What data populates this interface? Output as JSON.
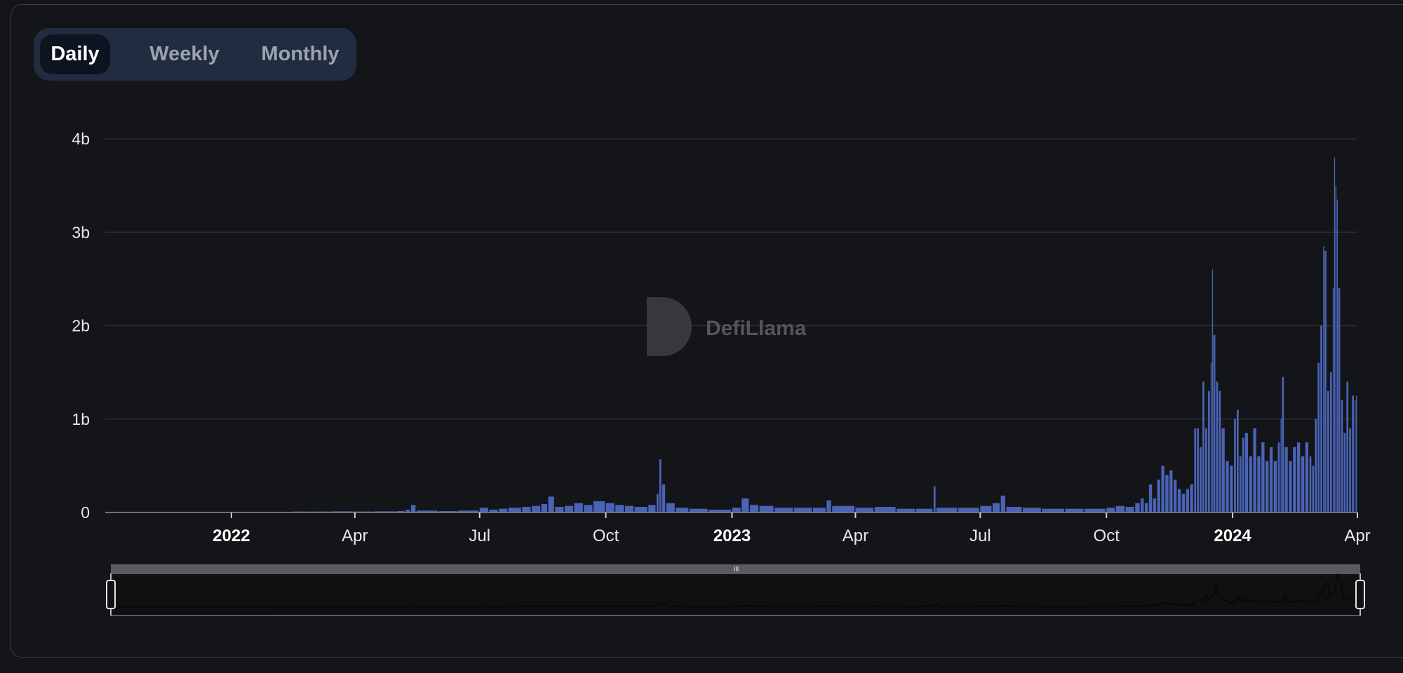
{
  "toggle": {
    "options": [
      "Daily",
      "Weekly",
      "Monthly"
    ],
    "selected": "Daily"
  },
  "watermark": "DefiLlama",
  "colors": {
    "bar": "#4a63b5",
    "background": "#141518",
    "toggle_bg": "#222c40"
  },
  "chart_data": {
    "type": "bar",
    "title": "",
    "xlabel": "",
    "ylabel": "",
    "ylim": [
      0,
      4
    ],
    "xlim": [
      "2021-10-01",
      "2024-04-01"
    ],
    "y_ticks": [
      {
        "v": 0,
        "label": "0"
      },
      {
        "v": 1,
        "label": "1b"
      },
      {
        "v": 2,
        "label": "2b"
      },
      {
        "v": 3,
        "label": "3b"
      },
      {
        "v": 4,
        "label": "4b"
      }
    ],
    "x_ticks": [
      {
        "date": "2022-01-01",
        "label": "2022",
        "bold": true
      },
      {
        "date": "2022-04-01",
        "label": "Apr",
        "bold": false
      },
      {
        "date": "2022-07-01",
        "label": "Jul",
        "bold": false
      },
      {
        "date": "2022-10-01",
        "label": "Oct",
        "bold": false
      },
      {
        "date": "2023-01-01",
        "label": "2023",
        "bold": true
      },
      {
        "date": "2023-04-01",
        "label": "Apr",
        "bold": false
      },
      {
        "date": "2023-07-01",
        "label": "Jul",
        "bold": false
      },
      {
        "date": "2023-10-01",
        "label": "Oct",
        "bold": false
      },
      {
        "date": "2024-01-01",
        "label": "2024",
        "bold": true
      },
      {
        "date": "2024-04-01",
        "label": "Apr",
        "bold": false
      }
    ],
    "grid": true,
    "unit": "b",
    "points": [
      [
        "2021-10-01",
        0
      ],
      [
        "2021-11-01",
        0
      ],
      [
        "2021-12-01",
        0
      ],
      [
        "2022-01-01",
        0
      ],
      [
        "2022-02-01",
        0.005
      ],
      [
        "2022-02-15",
        0.01
      ],
      [
        "2022-03-01",
        0.01
      ],
      [
        "2022-03-15",
        0.012
      ],
      [
        "2022-04-01",
        0.01
      ],
      [
        "2022-04-15",
        0.012
      ],
      [
        "2022-05-01",
        0.015
      ],
      [
        "2022-05-08",
        0.03
      ],
      [
        "2022-05-12",
        0.08
      ],
      [
        "2022-05-16",
        0.02
      ],
      [
        "2022-06-01",
        0.015
      ],
      [
        "2022-06-15",
        0.02
      ],
      [
        "2022-07-01",
        0.05
      ],
      [
        "2022-07-08",
        0.03
      ],
      [
        "2022-07-15",
        0.04
      ],
      [
        "2022-07-22",
        0.05
      ],
      [
        "2022-08-01",
        0.06
      ],
      [
        "2022-08-08",
        0.07
      ],
      [
        "2022-08-15",
        0.09
      ],
      [
        "2022-08-20",
        0.17
      ],
      [
        "2022-08-25",
        0.06
      ],
      [
        "2022-09-01",
        0.07
      ],
      [
        "2022-09-08",
        0.1
      ],
      [
        "2022-09-15",
        0.08
      ],
      [
        "2022-09-22",
        0.12
      ],
      [
        "2022-10-01",
        0.1
      ],
      [
        "2022-10-08",
        0.08
      ],
      [
        "2022-10-15",
        0.07
      ],
      [
        "2022-10-22",
        0.06
      ],
      [
        "2022-11-01",
        0.08
      ],
      [
        "2022-11-07",
        0.2
      ],
      [
        "2022-11-09",
        0.57
      ],
      [
        "2022-11-11",
        0.3
      ],
      [
        "2022-11-14",
        0.1
      ],
      [
        "2022-11-21",
        0.05
      ],
      [
        "2022-12-01",
        0.04
      ],
      [
        "2022-12-15",
        0.03
      ],
      [
        "2023-01-01",
        0.05
      ],
      [
        "2023-01-08",
        0.15
      ],
      [
        "2023-01-14",
        0.08
      ],
      [
        "2023-01-21",
        0.07
      ],
      [
        "2023-02-01",
        0.05
      ],
      [
        "2023-02-15",
        0.05
      ],
      [
        "2023-03-01",
        0.05
      ],
      [
        "2023-03-11",
        0.13
      ],
      [
        "2023-03-15",
        0.07
      ],
      [
        "2023-04-01",
        0.05
      ],
      [
        "2023-04-15",
        0.06
      ],
      [
        "2023-05-01",
        0.04
      ],
      [
        "2023-05-15",
        0.04
      ],
      [
        "2023-05-28",
        0.28
      ],
      [
        "2023-05-30",
        0.05
      ],
      [
        "2023-06-15",
        0.05
      ],
      [
        "2023-07-01",
        0.07
      ],
      [
        "2023-07-10",
        0.1
      ],
      [
        "2023-07-16",
        0.18
      ],
      [
        "2023-07-20",
        0.06
      ],
      [
        "2023-08-01",
        0.05
      ],
      [
        "2023-08-15",
        0.04
      ],
      [
        "2023-09-01",
        0.04
      ],
      [
        "2023-09-15",
        0.04
      ],
      [
        "2023-10-01",
        0.05
      ],
      [
        "2023-10-08",
        0.07
      ],
      [
        "2023-10-15",
        0.06
      ],
      [
        "2023-10-22",
        0.1
      ],
      [
        "2023-10-26",
        0.15
      ],
      [
        "2023-10-29",
        0.1
      ],
      [
        "2023-11-01",
        0.3
      ],
      [
        "2023-11-04",
        0.15
      ],
      [
        "2023-11-07",
        0.35
      ],
      [
        "2023-11-10",
        0.5
      ],
      [
        "2023-11-13",
        0.4
      ],
      [
        "2023-11-16",
        0.45
      ],
      [
        "2023-11-19",
        0.35
      ],
      [
        "2023-11-22",
        0.25
      ],
      [
        "2023-11-25",
        0.2
      ],
      [
        "2023-11-28",
        0.25
      ],
      [
        "2023-12-01",
        0.3
      ],
      [
        "2023-12-04",
        0.9
      ],
      [
        "2023-12-06",
        0.9
      ],
      [
        "2023-12-08",
        0.7
      ],
      [
        "2023-12-10",
        1.4
      ],
      [
        "2023-12-12",
        0.9
      ],
      [
        "2023-12-14",
        1.3
      ],
      [
        "2023-12-16",
        1.6
      ],
      [
        "2023-12-17",
        2.6
      ],
      [
        "2023-12-18",
        1.9
      ],
      [
        "2023-12-20",
        1.4
      ],
      [
        "2023-12-22",
        1.3
      ],
      [
        "2023-12-24",
        0.9
      ],
      [
        "2023-12-27",
        0.55
      ],
      [
        "2023-12-30",
        0.5
      ],
      [
        "2024-01-02",
        1.0
      ],
      [
        "2024-01-04",
        1.1
      ],
      [
        "2024-01-06",
        0.6
      ],
      [
        "2024-01-08",
        0.8
      ],
      [
        "2024-01-10",
        0.85
      ],
      [
        "2024-01-13",
        0.6
      ],
      [
        "2024-01-16",
        0.9
      ],
      [
        "2024-01-19",
        0.6
      ],
      [
        "2024-01-22",
        0.75
      ],
      [
        "2024-01-25",
        0.55
      ],
      [
        "2024-01-28",
        0.7
      ],
      [
        "2024-01-31",
        0.55
      ],
      [
        "2024-02-03",
        0.75
      ],
      [
        "2024-02-05",
        1.0
      ],
      [
        "2024-02-06",
        1.45
      ],
      [
        "2024-02-08",
        0.7
      ],
      [
        "2024-02-11",
        0.55
      ],
      [
        "2024-02-14",
        0.7
      ],
      [
        "2024-02-17",
        0.75
      ],
      [
        "2024-02-20",
        0.6
      ],
      [
        "2024-02-23",
        0.75
      ],
      [
        "2024-02-26",
        0.6
      ],
      [
        "2024-02-28",
        0.5
      ],
      [
        "2024-03-01",
        1.0
      ],
      [
        "2024-03-03",
        1.6
      ],
      [
        "2024-03-05",
        2.0
      ],
      [
        "2024-03-07",
        2.85
      ],
      [
        "2024-03-08",
        2.8
      ],
      [
        "2024-03-10",
        1.3
      ],
      [
        "2024-03-12",
        1.5
      ],
      [
        "2024-03-14",
        2.4
      ],
      [
        "2024-03-15",
        3.8
      ],
      [
        "2024-03-16",
        3.5
      ],
      [
        "2024-03-17",
        3.35
      ],
      [
        "2024-03-18",
        2.4
      ],
      [
        "2024-03-20",
        1.2
      ],
      [
        "2024-03-22",
        0.85
      ],
      [
        "2024-03-24",
        1.4
      ],
      [
        "2024-03-26",
        0.9
      ],
      [
        "2024-03-28",
        1.25
      ],
      [
        "2024-03-30",
        1.2
      ],
      [
        "2024-03-31",
        1.25
      ]
    ]
  }
}
